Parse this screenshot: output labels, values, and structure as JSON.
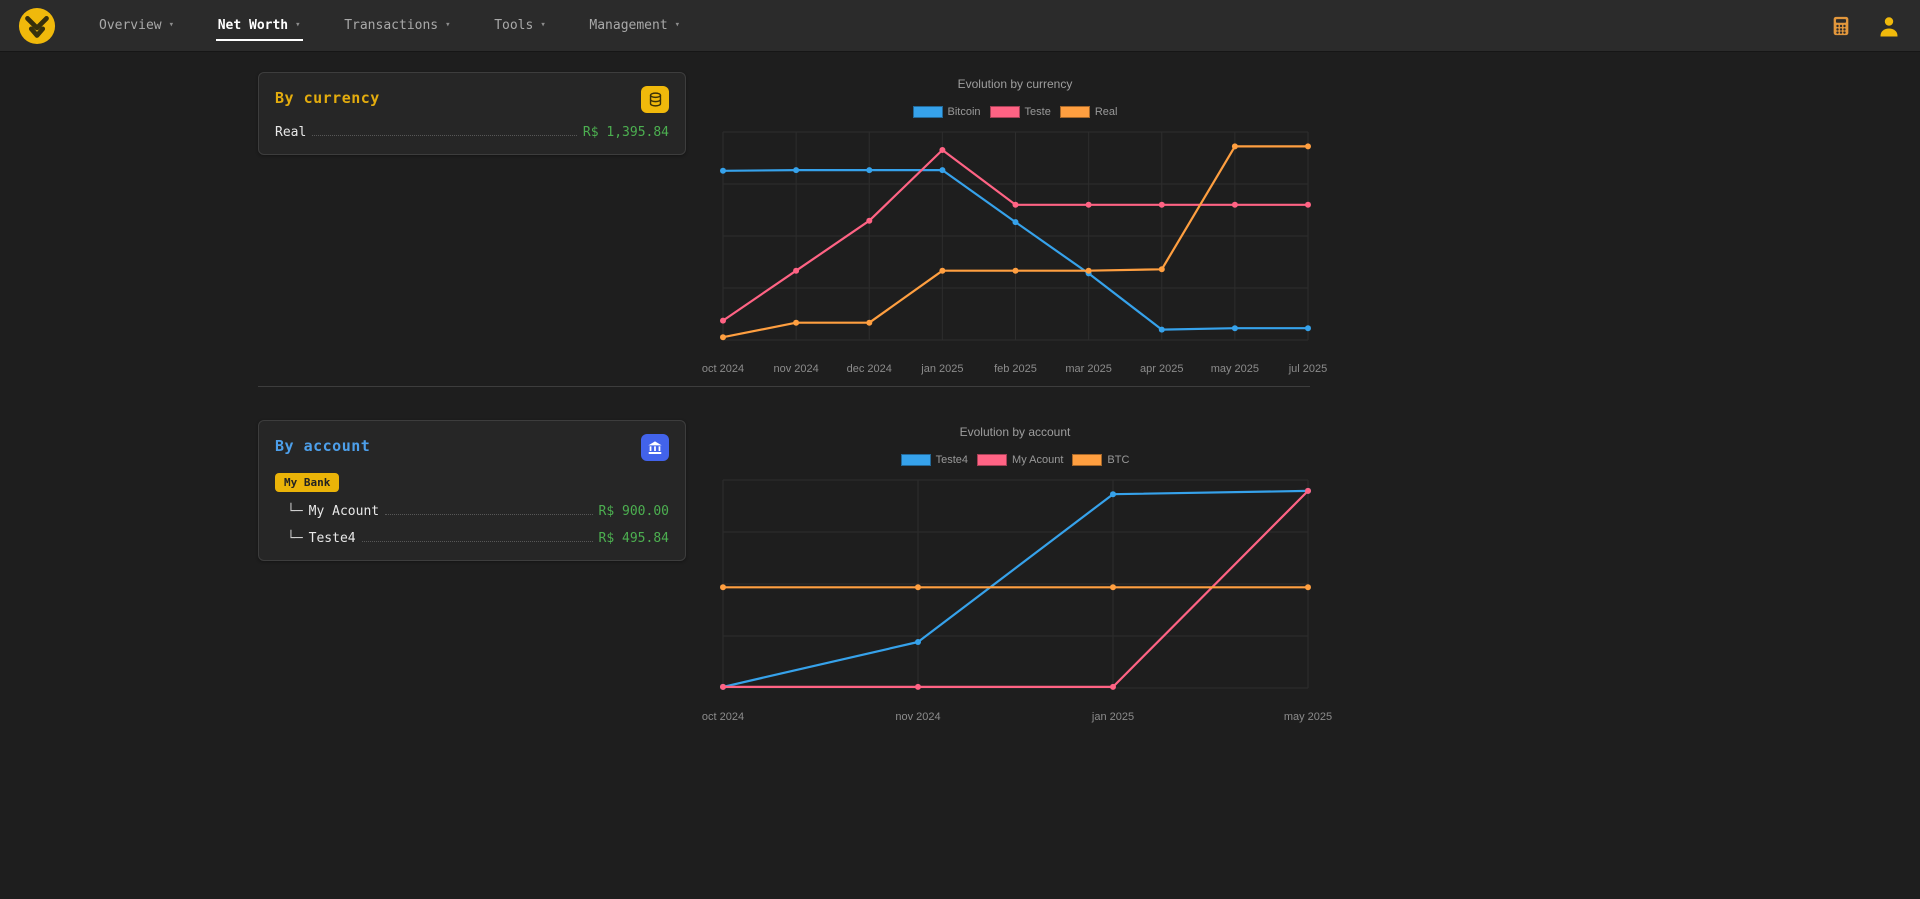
{
  "navbar": {
    "items": [
      {
        "label": "Overview",
        "active": false
      },
      {
        "label": "Net Worth",
        "active": true
      },
      {
        "label": "Transactions",
        "active": false
      },
      {
        "label": "Tools",
        "active": false
      },
      {
        "label": "Management",
        "active": false
      }
    ]
  },
  "currency_card": {
    "title": "By currency",
    "rows": [
      {
        "label": "Real",
        "value": "R$ 1,395.84"
      }
    ]
  },
  "account_card": {
    "title": "By account",
    "badge": "My Bank",
    "rows": [
      {
        "prefix": "└─",
        "label": "My Acount",
        "value": "R$ 900.00"
      },
      {
        "prefix": "└─",
        "label": "Teste4",
        "value": "R$ 495.84"
      }
    ]
  },
  "colors": {
    "accent_yellow": "#f0b90b",
    "accent_blue": "#4d9fea",
    "button_blue": "#4263eb",
    "value_green": "#4caf50",
    "series_blue": "#36A2EB",
    "series_pink": "#FF6384",
    "series_orange": "#FF9F40"
  },
  "chart_data": [
    {
      "type": "line",
      "title": "Evolution by currency",
      "categories": [
        "oct 2024",
        "nov 2024",
        "dec 2024",
        "jan 2025",
        "feb 2025",
        "mar 2025",
        "apr 2025",
        "may 2025",
        "jul 2025"
      ],
      "series": [
        {
          "name": "Bitcoin",
          "color": "#36A2EB",
          "values": [
            1220,
            1225,
            1225,
            1225,
            850,
            480,
            75,
            85,
            85
          ]
        },
        {
          "name": "Teste",
          "color": "#FF6384",
          "values": [
            140,
            500,
            860,
            1370,
            975,
            975,
            975,
            975,
            975
          ]
        },
        {
          "name": "Real",
          "color": "#FF9F40",
          "values": [
            20,
            125,
            125,
            500,
            500,
            500,
            510,
            1396,
            1396
          ]
        }
      ],
      "ylim": [
        0,
        1500
      ],
      "grid": true,
      "legend_position": "top"
    },
    {
      "type": "line",
      "title": "Evolution by account",
      "categories": [
        "oct 2024",
        "nov 2024",
        "jan 2025",
        "may 2025"
      ],
      "series": [
        {
          "name": "Teste4",
          "color": "#36A2EB",
          "values": [
            5,
            210,
            885,
            900
          ]
        },
        {
          "name": "My Acount",
          "color": "#FF6384",
          "values": [
            5,
            5,
            5,
            900
          ]
        },
        {
          "name": "BTC",
          "color": "#FF9F40",
          "values": [
            460,
            460,
            460,
            460
          ]
        }
      ],
      "ylim": [
        0,
        950
      ],
      "grid": true,
      "legend_position": "top"
    }
  ]
}
